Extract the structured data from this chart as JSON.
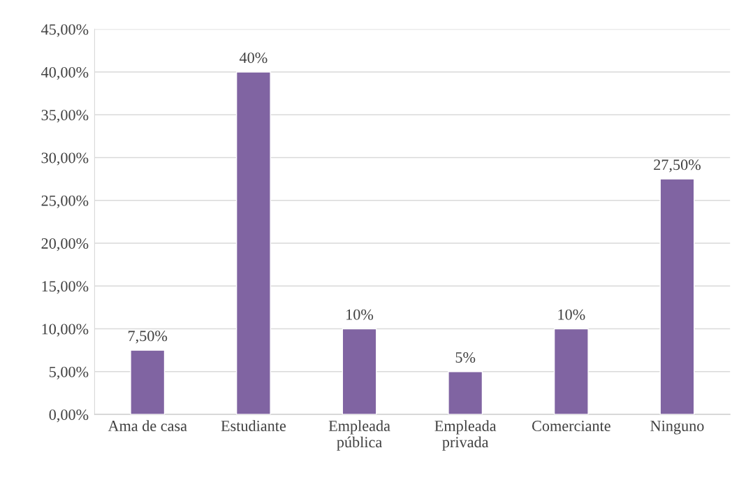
{
  "chart_data": {
    "type": "bar",
    "categories": [
      "Ama de casa",
      "Estudiante",
      "Empleada\npública",
      "Empleada\nprivada",
      "Comerciante",
      "Ninguno"
    ],
    "values": [
      7.5,
      40,
      10,
      5,
      10,
      27.5
    ],
    "value_labels": [
      "7,50%",
      "40%",
      "10%",
      "5%",
      "10%",
      "27,50%"
    ],
    "color": "#8064a2",
    "ylim": [
      0,
      45
    ],
    "yticks": [
      {
        "value": 0,
        "label": "0,00%"
      },
      {
        "value": 5,
        "label": "5,00%"
      },
      {
        "value": 10,
        "label": "10,00%"
      },
      {
        "value": 15,
        "label": "15,00%"
      },
      {
        "value": 20,
        "label": "20,00%"
      },
      {
        "value": 25,
        "label": "25,00%"
      },
      {
        "value": 30,
        "label": "30,00%"
      },
      {
        "value": 35,
        "label": "35,00%"
      },
      {
        "value": 40,
        "label": "40,00%"
      },
      {
        "value": 45,
        "label": "45,00%"
      }
    ],
    "grid": "y",
    "legend": false
  }
}
